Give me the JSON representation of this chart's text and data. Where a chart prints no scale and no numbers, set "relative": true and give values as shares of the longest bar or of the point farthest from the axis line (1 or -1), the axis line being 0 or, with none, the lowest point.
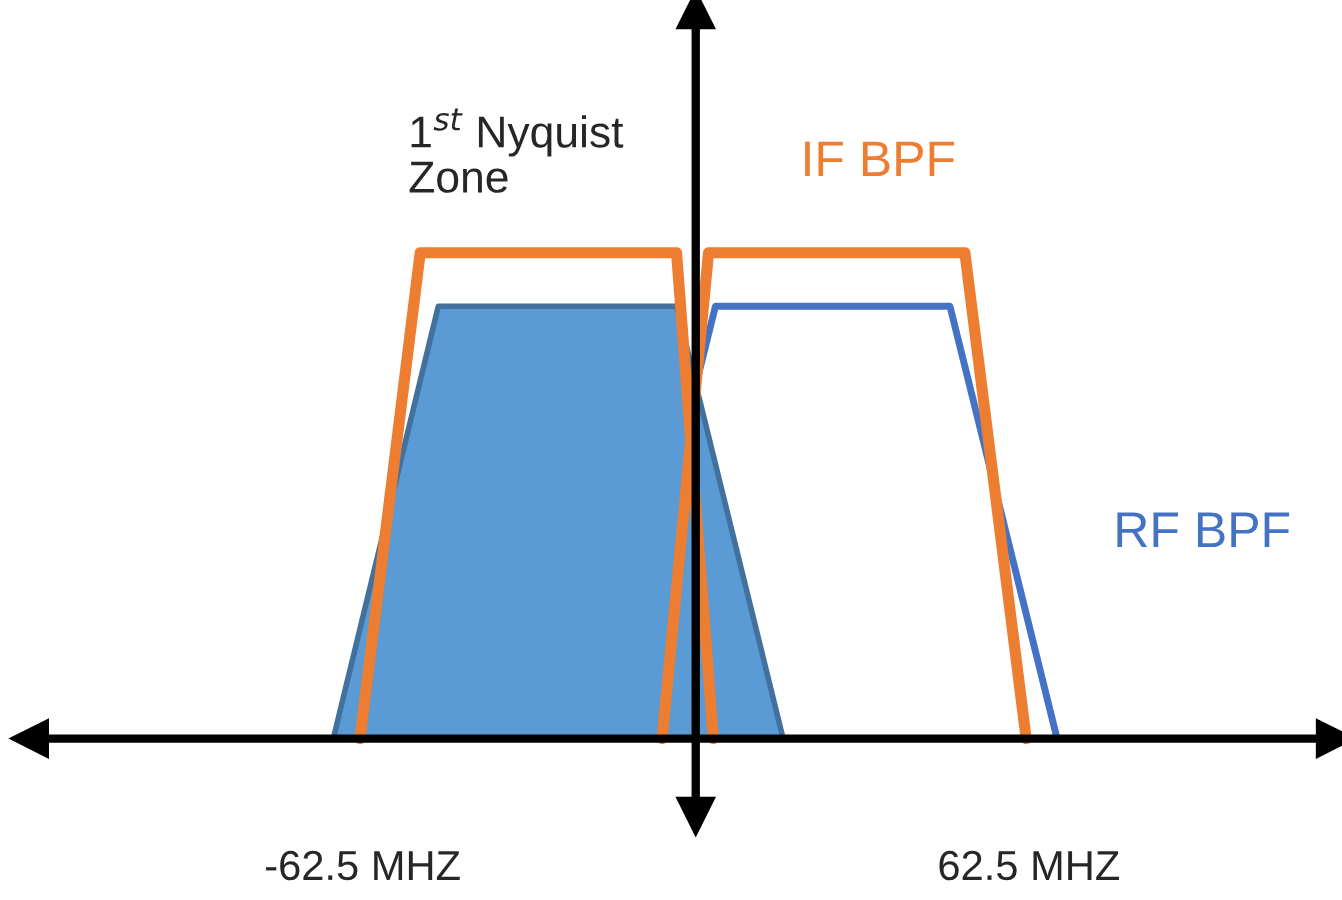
{
  "chart_data": {
    "type": "line",
    "relative": true,
    "legend": false,
    "grid": false,
    "xlim": [
      -125,
      120
    ],
    "xticks": [
      {
        "value": -62.5,
        "label": "-62.5 MHZ"
      },
      {
        "value": 62.5,
        "label": "62.5 MHZ"
      }
    ],
    "annotations": [
      "1$^{st}$ Nyquist\nZone"
    ],
    "series": [
      {
        "type": "area",
        "color": "#5b9bd5",
        "x": [
          -68,
          -48.3,
          -3.6,
          16.4
        ],
        "values": [
          0,
          0.89,
          0.89,
          0
        ]
      },
      {
        "name": "RF BPF",
        "color": "#4472c4",
        "x": [
          -16.4,
          3.7,
          47.7,
          67.8
        ],
        "values": [
          0,
          0.89,
          0.89,
          0
        ]
      },
      {
        "color": "#ed7d31",
        "x": [
          -63,
          -51.7,
          -3.6,
          3.3
        ],
        "values": [
          0,
          1,
          1,
          0
        ]
      },
      {
        "name": "IF BPF",
        "color": "#ed7d31",
        "x": [
          -6.3,
          2.4,
          50.5,
          62
        ],
        "values": [
          0,
          1,
          1,
          0
        ]
      }
    ]
  }
}
